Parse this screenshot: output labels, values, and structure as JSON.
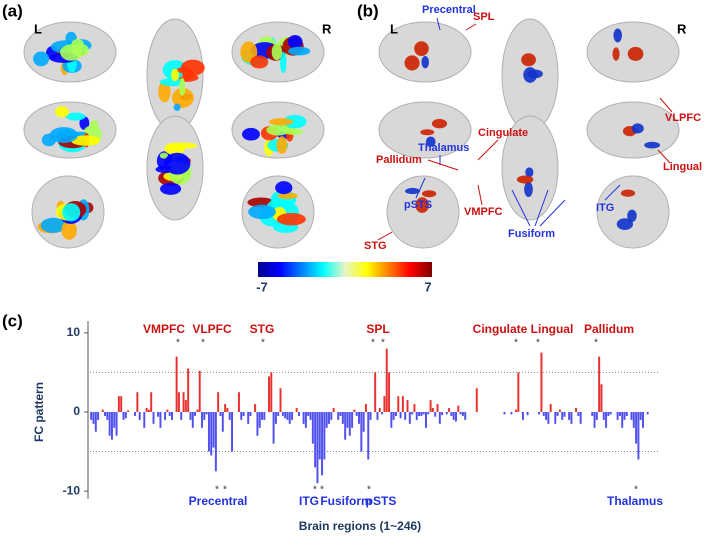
{
  "panels": {
    "a": "(a)",
    "b": "(b)",
    "c": "(c)"
  },
  "brain_a": {
    "left": "L",
    "right": "R"
  },
  "brain_b": {
    "left": "L",
    "right": "R",
    "labels": [
      {
        "text": "Precentral",
        "color": "#2233dd"
      },
      {
        "text": "SPL",
        "color": "#cc1111"
      },
      {
        "text": "Cingulate",
        "color": "#cc1111"
      },
      {
        "text": "Thalamus",
        "color": "#2233dd"
      },
      {
        "text": "Pallidum",
        "color": "#cc1111"
      },
      {
        "text": "pSTS",
        "color": "#2233dd"
      },
      {
        "text": "VMPFC",
        "color": "#cc1111"
      },
      {
        "text": "VLPFC",
        "color": "#cc1111"
      },
      {
        "text": "Lingual",
        "color": "#cc1111"
      },
      {
        "text": "ITG",
        "color": "#2233dd"
      },
      {
        "text": "Fusiform",
        "color": "#2233dd"
      },
      {
        "text": "STG",
        "color": "#cc1111"
      }
    ]
  },
  "colorbar": {
    "ticks": [
      -7,
      7
    ]
  },
  "chart_data": {
    "type": "bar",
    "xlabel": "Brain regions (1~246)",
    "ylabel": "FC pattern",
    "ylim": [
      -11,
      11.5
    ],
    "yticks": [
      -10,
      0,
      10
    ],
    "reference_lines": [
      -5,
      5
    ],
    "positive_color": "#e8312f",
    "negative_color": "#5050ee",
    "annotations_positive": [
      "VMPFC",
      "VLPFC",
      "STG",
      "SPL",
      "Cingulate",
      "Lingual",
      "Pallidum"
    ],
    "annotations_negative": [
      "Precentral",
      "ITG",
      "Fusiform",
      "pSTS",
      "Thalamus"
    ],
    "significance_marker": "*",
    "values": [
      -1,
      -1.5,
      -2.5,
      -1,
      0,
      0.3,
      -0.5,
      -1,
      -3,
      -3.5,
      -2,
      -3,
      2,
      2,
      -1,
      -0.8,
      0.2,
      0,
      0,
      -0.5,
      2.5,
      -1,
      0,
      -2,
      0.5,
      0.3,
      2.5,
      -1.5,
      0,
      -0.6,
      -2,
      0,
      -1,
      0.3,
      -0.5,
      -1,
      0,
      7,
      2.5,
      -1,
      2.5,
      1.5,
      5.5,
      -1,
      -2,
      -0.5,
      0.3,
      5.2,
      -2,
      -1,
      -0.3,
      -5,
      -5.5,
      -4.5,
      -7.5,
      2.5,
      -0.5,
      -2.5,
      1,
      0.5,
      -1,
      -5,
      0,
      0,
      2.5,
      -1,
      -0.5,
      0,
      -1.5,
      -0.5,
      0,
      1,
      -3,
      -2,
      -1,
      -1,
      0,
      4.5,
      5,
      -4,
      -1.5,
      -0.5,
      3,
      -0.5,
      -0.8,
      -1,
      -1.5,
      -1,
      0,
      0.5,
      -0.5,
      0,
      -1.5,
      -2,
      -0.5,
      -1,
      -4,
      -7,
      -9,
      -6,
      -8,
      -6,
      -2,
      -1.5,
      -1,
      0.5,
      0,
      -1,
      -0.5,
      -1.5,
      -3.5,
      -2,
      -3,
      -2,
      0.3,
      -0.5,
      -1.5,
      -5,
      -2.5,
      1,
      -6,
      -1,
      0,
      5,
      -1,
      0.5,
      -0.3,
      2,
      8,
      5,
      -2,
      -1,
      -0.5,
      2,
      -0.8,
      2,
      -1,
      1.5,
      -1.5,
      -0.3,
      1,
      -1,
      -0.5,
      -0.5,
      -0.3,
      -2,
      -0.3,
      1.5,
      0.5,
      -0.6,
      1,
      -1.5,
      -0.4,
      0,
      -0.3,
      0.5,
      -0.5,
      -1,
      -1.2,
      0.8,
      -0.3,
      -0.5,
      -1,
      0,
      0,
      0,
      0,
      3,
      0,
      0,
      0,
      0,
      0,
      0,
      0,
      0,
      0,
      0,
      0,
      -0.3,
      0,
      0,
      -0.3,
      0,
      0.3,
      5,
      0,
      -1,
      0,
      -0.4,
      0,
      0,
      0,
      0,
      -0.3,
      7.5,
      -0.5,
      -1,
      -1.5,
      1,
      0,
      -1.5,
      -0.5,
      0.3,
      -1,
      -0.6,
      0,
      -1,
      -1.5,
      0,
      0.5,
      -0.5,
      -1.5,
      0,
      0,
      0,
      0,
      -0.5,
      -2,
      -1,
      7,
      3.5,
      -1,
      -2,
      -0.5,
      -0.3,
      0,
      0,
      -1,
      -0.5,
      -2,
      -1,
      -0.5,
      0,
      -1,
      -2,
      -4,
      -6,
      -1,
      -2,
      0,
      -0.3,
      0,
      0,
      0,
      0
    ]
  }
}
